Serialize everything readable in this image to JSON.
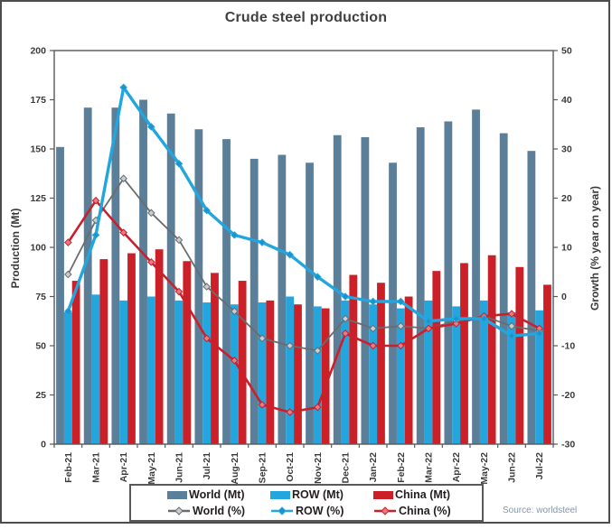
{
  "title": "Crude steel production",
  "source_note": "Source: worldsteel",
  "colors": {
    "frame_border": "#4d4d4f",
    "plot_border": "#58595b",
    "title_text": "#3f4041",
    "tick_text": "#3a3a3c",
    "world_bar": "#5b7e99",
    "row_bar": "#23a5de",
    "china_bar": "#cb2027",
    "world_line": "#6a6c6e",
    "row_line": "#23a5de",
    "china_line": "#c9202b"
  },
  "chart_data": {
    "type": "bar+line",
    "categories": [
      "Feb-21",
      "Mar-21",
      "Apr-21",
      "May-21",
      "Jun-21",
      "Jul-21",
      "Aug-21",
      "Sep-21",
      "Oct-21",
      "Nov-21",
      "Dec-21",
      "Jan-22",
      "Feb-22",
      "Mar-22",
      "Apr-22",
      "May-22",
      "Jun-22",
      "Jul-22"
    ],
    "left_axis": {
      "label": "Production (Mt)",
      "min": 0,
      "max": 200,
      "step": 25
    },
    "right_axis": {
      "label": "Growth (% year on year)",
      "min": -30,
      "max": 50,
      "step": 10
    },
    "grid": false,
    "legend_position": "bottom",
    "bar_series": [
      {
        "name": "World (Mt)",
        "axis": "left",
        "color": "#5b7e99",
        "values": [
          151,
          171,
          171,
          175,
          168,
          160,
          155,
          145,
          147,
          143,
          157,
          156,
          143,
          161,
          164,
          170,
          158,
          149
        ]
      },
      {
        "name": "ROW (Mt)",
        "axis": "left",
        "color": "#23a5de",
        "values": [
          67,
          76,
          73,
          75,
          73,
          72,
          71,
          72,
          75,
          70,
          73,
          71,
          69,
          73,
          70,
          73,
          67,
          68
        ]
      },
      {
        "name": "China (Mt)",
        "axis": "left",
        "color": "#cb2027",
        "values": [
          83,
          94,
          97,
          99,
          93,
          87,
          83,
          73,
          71,
          69,
          86,
          82,
          75,
          88,
          92,
          96,
          90,
          81
        ]
      }
    ],
    "line_series": [
      {
        "name": "World (%)",
        "axis": "right",
        "color": "#6a6c6e",
        "marker_fill": "#c9ced4",
        "width": 1.8,
        "values": [
          4.5,
          15.5,
          24,
          17,
          11.5,
          2,
          -3,
          -8.5,
          -10,
          -11,
          -4.5,
          -6.5,
          -6,
          -6.5,
          -5,
          -4,
          -6,
          -7
        ]
      },
      {
        "name": "ROW (%)",
        "axis": "right",
        "color": "#23a5de",
        "marker_fill": "#1b94c9",
        "width": 3.4,
        "values": [
          -3,
          12.5,
          42.5,
          34.5,
          27,
          17.5,
          12.5,
          11,
          8.5,
          4,
          0,
          -1,
          -1,
          -5,
          -4.5,
          -4.5,
          -8,
          -7.5
        ]
      },
      {
        "name": "China (%)",
        "axis": "right",
        "color": "#c9202b",
        "marker_fill": "#e87a82",
        "width": 2.6,
        "values": [
          11,
          19.5,
          13,
          7,
          1,
          -8.5,
          -13,
          -22,
          -23.5,
          -22.5,
          -7.5,
          -10,
          -10,
          -6.5,
          -5.5,
          -4,
          -3.5,
          -6.5
        ]
      }
    ]
  }
}
